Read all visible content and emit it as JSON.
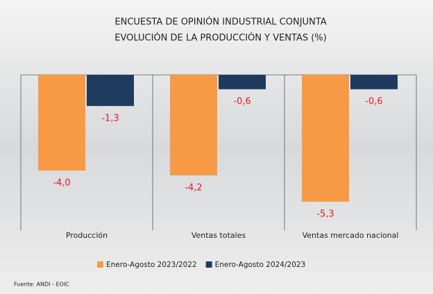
{
  "chart_data": {
    "type": "bar",
    "title": [
      "ENCUESTA DE OPINIÓN INDUSTRIAL CONJUNTA",
      "EVOLUCIÓN DE LA PRODUCCIÓN Y VENTAS (%)"
    ],
    "categories": [
      "Producción",
      "Ventas totales",
      "Ventas mercado nacional"
    ],
    "series": [
      {
        "name": "Enero-Agosto 2023/2022",
        "color": "#f79a46",
        "values": [
          -4.0,
          -4.2,
          -5.3
        ],
        "value_labels": [
          "-4,0",
          "-4,2",
          "-5,3"
        ]
      },
      {
        "name": "Enero-Agosto 2024/2023",
        "color": "#1f3a5f",
        "values": [
          -1.3,
          -0.6,
          -0.6
        ],
        "value_labels": [
          "-1,3",
          "-0,6",
          "-0,6"
        ]
      }
    ],
    "value_label_color": "#e02020",
    "ylim": [
      -6,
      0
    ],
    "source": "Fuente: ANDI - EOIC"
  }
}
